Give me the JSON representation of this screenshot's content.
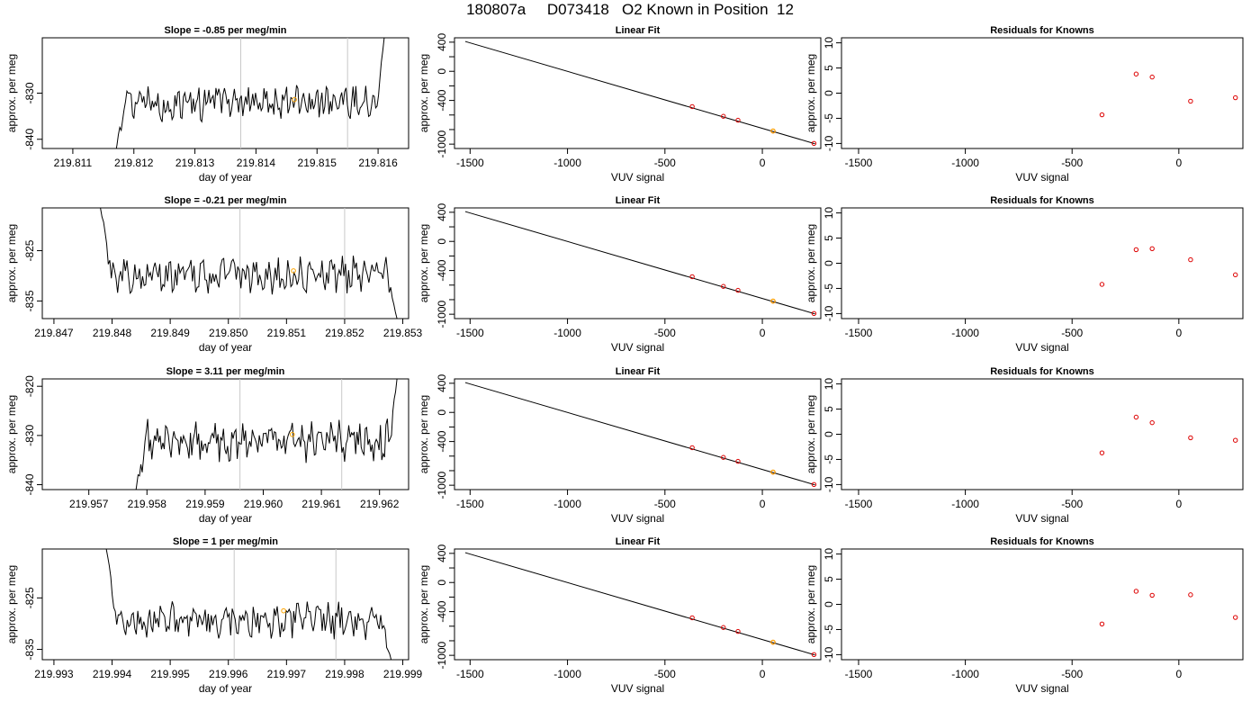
{
  "title": "180807a     D073418   O2 Known in Position  12",
  "panel_titles": {
    "linear_fit": "Linear Fit",
    "residuals": "Residuals for Knowns"
  },
  "axis_labels": {
    "day_x": "day of year",
    "per_meg_y": "approx. per meg",
    "vuv_x": "VUV signal"
  },
  "colors": {
    "trace": "#000000",
    "cycle_marker": "#ffa500",
    "residual_points": "#dd0000",
    "boundary_lines": "#c8c8c8",
    "axis": "#000000"
  },
  "chart_data": [
    {
      "type": "line",
      "panel": "trace-1",
      "title": "Slope =  -0.85  per meg/min",
      "xlabel": "day of year",
      "ylabel": "approx. per meg",
      "xlim": [
        219.8105,
        219.8165
      ],
      "ylim": [
        -842,
        -818
      ],
      "x_ticks": [
        219.811,
        219.812,
        219.813,
        219.814,
        219.815,
        219.816
      ],
      "x_tick_labels": [
        "219.811",
        "219.812",
        "219.813",
        "219.814",
        "219.815",
        "219.816"
      ],
      "y_ticks": [
        -840,
        -830
      ],
      "y_tick_labels": [
        "-840",
        "-830"
      ],
      "x_range_trace": [
        219.8117,
        219.8161
      ],
      "trace_mean": -832.0,
      "trace_amp": 3.0,
      "trace_start": -843,
      "trace_end": -818,
      "boundaries": [
        219.81375,
        219.8155
      ],
      "marker": {
        "x": 219.81463,
        "y": -831.4
      },
      "grid": false
    },
    {
      "type": "scatter",
      "panel": "fit-1",
      "title": "Linear Fit",
      "xlabel": "VUV signal",
      "ylabel": "approx. per meg",
      "xlim": [
        -1580,
        300
      ],
      "ylim": [
        -1060,
        460
      ],
      "x_ticks": [
        -1500,
        -1000,
        -500,
        0
      ],
      "x_tick_labels": [
        "-1500",
        "-1000",
        "-500",
        "0"
      ],
      "y_ticks": [
        400,
        0,
        -400,
        -1000
      ],
      "y_tick_labels": [
        "400",
        "0",
        "-400",
        "-1000"
      ],
      "line": [
        [
          -1525,
          410
        ],
        [
          270,
          -995
        ]
      ],
      "points": [
        [
          -360,
          -485
        ],
        [
          -200,
          -618
        ],
        [
          -125,
          -672
        ],
        [
          55,
          -820
        ],
        [
          265,
          -990
        ]
      ],
      "unknown_point": [
        55,
        -820
      ],
      "grid": false
    },
    {
      "type": "scatter",
      "panel": "residuals-1",
      "title": "Residuals for Knowns",
      "xlabel": "VUV signal",
      "ylabel": "approx. per meg",
      "xlim": [
        -1580,
        300
      ],
      "ylim": [
        -11,
        11
      ],
      "x_ticks": [
        -1500,
        -1000,
        -500,
        0
      ],
      "x_tick_labels": [
        "-1500",
        "-1000",
        "-500",
        "0"
      ],
      "y_ticks": [
        -10,
        -5,
        0,
        5,
        10
      ],
      "y_tick_labels": [
        "-10",
        "-5",
        "0",
        "5",
        "10"
      ],
      "points": [
        [
          -360,
          -4.3
        ],
        [
          -200,
          3.8
        ],
        [
          -125,
          3.2
        ],
        [
          55,
          -1.6
        ],
        [
          265,
          -0.9
        ]
      ],
      "grid": false
    },
    {
      "type": "line",
      "panel": "trace-2",
      "title": "Slope =  -0.21  per meg/min",
      "xlabel": "day of year",
      "ylabel": "approx. per meg",
      "xlim": [
        219.8468,
        219.8531
      ],
      "ylim": [
        -838.5,
        -816.5
      ],
      "x_ticks": [
        219.847,
        219.848,
        219.849,
        219.85,
        219.851,
        219.852,
        219.853
      ],
      "x_tick_labels": [
        "219.847",
        "219.848",
        "219.849",
        "219.850",
        "219.851",
        "219.852",
        "219.853"
      ],
      "y_ticks": [
        -835,
        -825
      ],
      "y_tick_labels": [
        "-835",
        "-825"
      ],
      "x_range_trace": [
        219.8478,
        219.8529
      ],
      "trace_mean": -830.0,
      "trace_amp": 2.8,
      "trace_start": -816.5,
      "trace_end": -838.5,
      "boundaries": [
        219.8502,
        219.852
      ],
      "marker": {
        "x": 219.85112,
        "y": -829.0
      },
      "grid": false
    },
    {
      "type": "scatter",
      "panel": "fit-2",
      "title": "Linear Fit",
      "xlabel": "VUV signal",
      "ylabel": "approx. per meg",
      "xlim": [
        -1580,
        300
      ],
      "ylim": [
        -1060,
        460
      ],
      "x_ticks": [
        -1500,
        -1000,
        -500,
        0
      ],
      "x_tick_labels": [
        "-1500",
        "-1000",
        "-500",
        "0"
      ],
      "y_ticks": [
        400,
        0,
        -400,
        -1000
      ],
      "y_tick_labels": [
        "400",
        "0",
        "-400",
        "-1000"
      ],
      "line": [
        [
          -1525,
          410
        ],
        [
          270,
          -995
        ]
      ],
      "points": [
        [
          -360,
          -485
        ],
        [
          -200,
          -618
        ],
        [
          -125,
          -672
        ],
        [
          55,
          -820
        ],
        [
          265,
          -990
        ]
      ],
      "unknown_point": [
        55,
        -820
      ],
      "grid": false
    },
    {
      "type": "scatter",
      "panel": "residuals-2",
      "title": "Residuals for Knowns",
      "xlabel": "VUV signal",
      "ylabel": "approx. per meg",
      "xlim": [
        -1580,
        300
      ],
      "ylim": [
        -11,
        11
      ],
      "x_ticks": [
        -1500,
        -1000,
        -500,
        0
      ],
      "x_tick_labels": [
        "-1500",
        "-1000",
        "-500",
        "0"
      ],
      "y_ticks": [
        -10,
        -5,
        0,
        5,
        10
      ],
      "y_tick_labels": [
        "-10",
        "-5",
        "0",
        "5",
        "10"
      ],
      "points": [
        [
          -360,
          -4.2
        ],
        [
          -200,
          2.7
        ],
        [
          -125,
          2.9
        ],
        [
          55,
          0.7
        ],
        [
          265,
          -2.3
        ]
      ],
      "grid": false
    },
    {
      "type": "line",
      "panel": "trace-3",
      "title": "Slope =  3.11  per meg/min",
      "xlabel": "day of year",
      "ylabel": "approx. per meg",
      "xlim": [
        219.9562,
        219.9625
      ],
      "ylim": [
        -841,
        -818.5
      ],
      "x_ticks": [
        219.957,
        219.958,
        219.959,
        219.96,
        219.961,
        219.962
      ],
      "x_tick_labels": [
        "219.957",
        "219.958",
        "219.959",
        "219.960",
        "219.961",
        "219.962"
      ],
      "y_ticks": [
        -840,
        -830,
        -820
      ],
      "y_tick_labels": [
        "-840",
        "-830",
        "-820"
      ],
      "x_range_trace": [
        219.9578,
        219.9623
      ],
      "trace_mean": -831.0,
      "trace_amp": 3.2,
      "trace_start": -842,
      "trace_end": -818.5,
      "boundaries": [
        219.9596,
        219.96135
      ],
      "marker": {
        "x": 219.9605,
        "y": -829.8
      },
      "grid": false
    },
    {
      "type": "scatter",
      "panel": "fit-3",
      "title": "Linear Fit",
      "xlabel": "VUV signal",
      "ylabel": "approx. per meg",
      "xlim": [
        -1580,
        300
      ],
      "ylim": [
        -1060,
        460
      ],
      "x_ticks": [
        -1500,
        -1000,
        -500,
        0
      ],
      "x_tick_labels": [
        "-1500",
        "-1000",
        "-500",
        "0"
      ],
      "y_ticks": [
        400,
        0,
        -400,
        -1000
      ],
      "y_tick_labels": [
        "400",
        "0",
        "-400",
        "-1000"
      ],
      "line": [
        [
          -1525,
          410
        ],
        [
          270,
          -995
        ]
      ],
      "points": [
        [
          -360,
          -485
        ],
        [
          -200,
          -618
        ],
        [
          -125,
          -672
        ],
        [
          55,
          -820
        ],
        [
          265,
          -990
        ]
      ],
      "unknown_point": [
        55,
        -820
      ],
      "grid": false
    },
    {
      "type": "scatter",
      "panel": "residuals-3",
      "title": "Residuals for Knowns",
      "xlabel": "VUV signal",
      "ylabel": "approx. per meg",
      "xlim": [
        -1580,
        300
      ],
      "ylim": [
        -11,
        11
      ],
      "x_ticks": [
        -1500,
        -1000,
        -500,
        0
      ],
      "x_tick_labels": [
        "-1500",
        "-1000",
        "-500",
        "0"
      ],
      "y_ticks": [
        -10,
        -5,
        0,
        5,
        10
      ],
      "y_tick_labels": [
        "-10",
        "-5",
        "0",
        "5",
        "10"
      ],
      "points": [
        [
          -360,
          -3.7
        ],
        [
          -200,
          3.4
        ],
        [
          -125,
          2.3
        ],
        [
          55,
          -0.7
        ],
        [
          265,
          -1.2
        ]
      ],
      "grid": false
    },
    {
      "type": "line",
      "panel": "trace-4",
      "title": "Slope =  1  per meg/min",
      "xlabel": "day of year",
      "ylabel": "approx. per meg",
      "xlim": [
        219.9928,
        219.9991
      ],
      "ylim": [
        -837,
        -815.5
      ],
      "x_ticks": [
        219.993,
        219.994,
        219.995,
        219.996,
        219.997,
        219.998,
        219.999
      ],
      "x_tick_labels": [
        "219.993",
        "219.994",
        "219.995",
        "219.996",
        "219.997",
        "219.998",
        "219.999"
      ],
      "y_ticks": [
        -835,
        -825
      ],
      "y_tick_labels": [
        "-835",
        "-825"
      ],
      "x_range_trace": [
        219.9939,
        219.9988
      ],
      "trace_mean": -829.5,
      "trace_amp": 2.7,
      "trace_start": -815.5,
      "trace_end": -837,
      "boundaries": [
        219.9961,
        219.99785
      ],
      "marker": {
        "x": 219.99695,
        "y": -827.5
      },
      "grid": false
    },
    {
      "type": "scatter",
      "panel": "fit-4",
      "title": "Linear Fit",
      "xlabel": "VUV signal",
      "ylabel": "approx. per meg",
      "xlim": [
        -1580,
        300
      ],
      "ylim": [
        -1060,
        460
      ],
      "x_ticks": [
        -1500,
        -1000,
        -500,
        0
      ],
      "x_tick_labels": [
        "-1500",
        "-1000",
        "-500",
        "0"
      ],
      "y_ticks": [
        400,
        0,
        -400,
        -1000
      ],
      "y_tick_labels": [
        "400",
        "0",
        "-400",
        "-1000"
      ],
      "line": [
        [
          -1525,
          410
        ],
        [
          270,
          -995
        ]
      ],
      "points": [
        [
          -360,
          -485
        ],
        [
          -200,
          -618
        ],
        [
          -125,
          -672
        ],
        [
          55,
          -820
        ],
        [
          265,
          -990
        ]
      ],
      "unknown_point": [
        55,
        -820
      ],
      "grid": false
    },
    {
      "type": "scatter",
      "panel": "residuals-4",
      "title": "Residuals for Knowns",
      "xlabel": "VUV signal",
      "ylabel": "approx. per meg",
      "xlim": [
        -1580,
        300
      ],
      "ylim": [
        -11,
        11
      ],
      "x_ticks": [
        -1500,
        -1000,
        -500,
        0
      ],
      "x_tick_labels": [
        "-1500",
        "-1000",
        "-500",
        "0"
      ],
      "y_ticks": [
        -10,
        -5,
        0,
        5,
        10
      ],
      "y_tick_labels": [
        "-10",
        "-5",
        "0",
        "5",
        "10"
      ],
      "points": [
        [
          -360,
          -3.9
        ],
        [
          -200,
          2.6
        ],
        [
          -125,
          1.8
        ],
        [
          55,
          1.9
        ],
        [
          265,
          -2.6
        ]
      ],
      "grid": false
    }
  ]
}
